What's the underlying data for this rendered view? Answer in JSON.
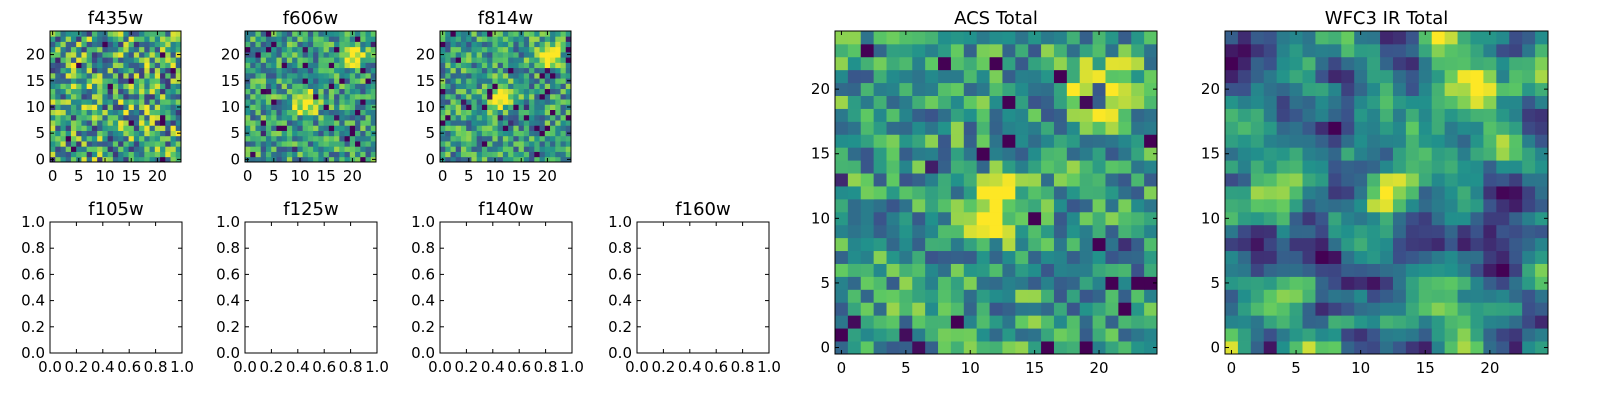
{
  "figure": {
    "colormap": "viridis",
    "colormap_stops": [
      "#440154",
      "#3b528b",
      "#21918c",
      "#5ec962",
      "#fde725"
    ]
  },
  "chart_data": [
    {
      "type": "heatmap",
      "title": "f435w",
      "xlabel": "",
      "ylabel": "",
      "grid_size": [
        25,
        25
      ],
      "xlim": [
        -0.5,
        24.5
      ],
      "ylim": [
        -0.5,
        24.5
      ],
      "xticks": [
        0,
        5,
        10,
        15,
        20
      ],
      "yticks": [
        0,
        5,
        10,
        15,
        20
      ],
      "texture": "uniform noise",
      "bright_spots": []
    },
    {
      "type": "heatmap",
      "title": "f606w",
      "xlabel": "",
      "ylabel": "",
      "grid_size": [
        25,
        25
      ],
      "xlim": [
        -0.5,
        24.5
      ],
      "ylim": [
        -0.5,
        24.5
      ],
      "xticks": [
        0,
        5,
        10,
        15,
        20
      ],
      "yticks": [
        0,
        5,
        10,
        15,
        20
      ],
      "texture": "noise",
      "bright_spots": [
        [
          20,
          20
        ],
        [
          11,
          11
        ]
      ]
    },
    {
      "type": "heatmap",
      "title": "f814w",
      "xlabel": "",
      "ylabel": "",
      "grid_size": [
        25,
        25
      ],
      "xlim": [
        -0.5,
        24.5
      ],
      "ylim": [
        -0.5,
        24.5
      ],
      "xticks": [
        0,
        5,
        10,
        15,
        20
      ],
      "yticks": [
        0,
        5,
        10,
        15,
        20
      ],
      "texture": "noise",
      "bright_spots": [
        [
          11,
          12
        ],
        [
          20,
          20
        ]
      ]
    },
    {
      "type": "empty",
      "title": "f105w",
      "xlabel": "",
      "ylabel": "",
      "xlim": [
        0,
        1
      ],
      "ylim": [
        0,
        1
      ],
      "xtick_labels": [
        "0.0",
        "0.2",
        "0.4",
        "0.6",
        "0.8",
        "1.0"
      ],
      "ytick_labels": [
        "0.0",
        "0.2",
        "0.4",
        "0.6",
        "0.8",
        "1.0"
      ]
    },
    {
      "type": "empty",
      "title": "f125w",
      "xlabel": "",
      "ylabel": "",
      "xlim": [
        0,
        1
      ],
      "ylim": [
        0,
        1
      ],
      "xtick_labels": [
        "0.0",
        "0.2",
        "0.4",
        "0.6",
        "0.8",
        "1.0"
      ],
      "ytick_labels": [
        "0.0",
        "0.2",
        "0.4",
        "0.6",
        "0.8",
        "1.0"
      ]
    },
    {
      "type": "empty",
      "title": "f140w",
      "xlabel": "",
      "ylabel": "",
      "xlim": [
        0,
        1
      ],
      "ylim": [
        0,
        1
      ],
      "xtick_labels": [
        "0.0",
        "0.2",
        "0.4",
        "0.6",
        "0.8",
        "1.0"
      ],
      "ytick_labels": [
        "0.0",
        "0.2",
        "0.4",
        "0.6",
        "0.8",
        "1.0"
      ]
    },
    {
      "type": "empty",
      "title": "f160w",
      "xlabel": "",
      "ylabel": "",
      "xlim": [
        0,
        1
      ],
      "ylim": [
        0,
        1
      ],
      "xtick_labels": [
        "0.0",
        "0.2",
        "0.4",
        "0.6",
        "0.8",
        "1.0"
      ],
      "ytick_labels": [
        "0.0",
        "0.2",
        "0.4",
        "0.6",
        "0.8",
        "1.0"
      ]
    },
    {
      "type": "heatmap",
      "title": "ACS Total",
      "xlabel": "",
      "ylabel": "",
      "grid_size": [
        25,
        25
      ],
      "xlim": [
        -0.5,
        24.5
      ],
      "ylim": [
        -0.5,
        24.5
      ],
      "xticks": [
        0,
        5,
        10,
        15,
        20
      ],
      "yticks": [
        0,
        5,
        10,
        15,
        20
      ],
      "texture": "noise",
      "bright_spots": [
        [
          20,
          20
        ],
        [
          12,
          11
        ]
      ]
    },
    {
      "type": "heatmap",
      "title": "WFC3 IR Total",
      "xlabel": "",
      "ylabel": "",
      "grid_size": [
        25,
        25
      ],
      "xlim": [
        -0.5,
        24.5
      ],
      "ylim": [
        -0.5,
        24.5
      ],
      "xticks": [
        0,
        5,
        10,
        15,
        20
      ],
      "yticks": [
        0,
        5,
        10,
        15,
        20
      ],
      "texture": "smooth",
      "bright_spots": [
        [
          19,
          20
        ],
        [
          12,
          12
        ]
      ]
    }
  ]
}
